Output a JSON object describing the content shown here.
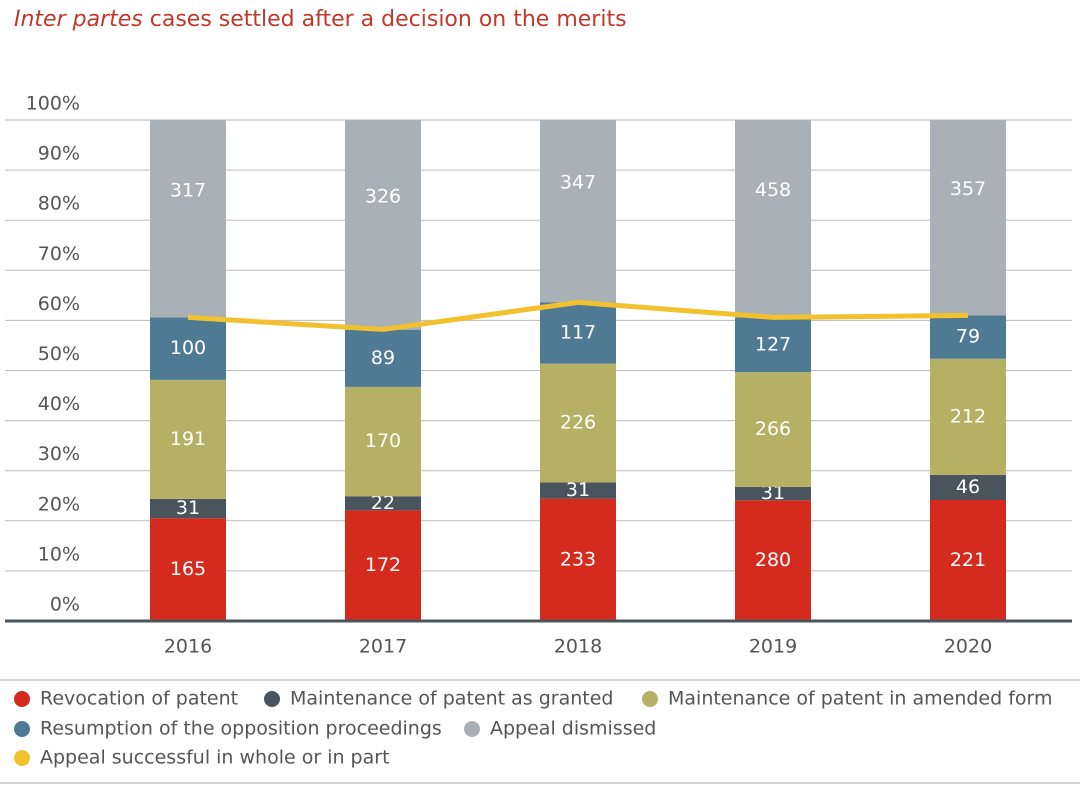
{
  "chart_data": {
    "type": "stacked_bar_percent",
    "title_italic": "Inter partes",
    "title": "cases settled after a decision on the merits",
    "categories": [
      "2016",
      "2017",
      "2018",
      "2019",
      "2020"
    ],
    "series": [
      {
        "name": "Revocation of patent",
        "color": "#d52b1e",
        "values": [
          165,
          172,
          233,
          280,
          221
        ]
      },
      {
        "name": "Maintenance of patent as granted",
        "color": "#4a545c",
        "values": [
          31,
          22,
          31,
          31,
          46
        ]
      },
      {
        "name": "Maintenance of patent in amended form",
        "color": "#b5b064",
        "values": [
          191,
          170,
          226,
          266,
          212
        ]
      },
      {
        "name": "Resumption of the opposition proceedings",
        "color": "#4f7a94",
        "values": [
          100,
          89,
          117,
          127,
          79
        ]
      },
      {
        "name": "Appeal dismissed",
        "color": "#a9b0b6",
        "values": [
          317,
          326,
          347,
          458,
          357
        ]
      }
    ],
    "line_series": {
      "name": "Appeal successful in whole or in part",
      "color": "#f2c12e",
      "values": [
        60.6,
        58.2,
        63.6,
        60.6,
        61.0
      ]
    },
    "ylim": [
      0,
      100
    ],
    "yticks": [
      {
        "value": 0,
        "label": "0%"
      },
      {
        "value": 10,
        "label": "10%"
      },
      {
        "value": 20,
        "label": "20%"
      },
      {
        "value": 30,
        "label": "30%"
      },
      {
        "value": 40,
        "label": "40%"
      },
      {
        "value": 50,
        "label": "50%"
      },
      {
        "value": 60,
        "label": "60%"
      },
      {
        "value": 70,
        "label": "70%"
      },
      {
        "value": 80,
        "label": "80%"
      },
      {
        "value": 90,
        "label": "90%"
      },
      {
        "value": 100,
        "label": "100%"
      }
    ],
    "grid": true
  }
}
